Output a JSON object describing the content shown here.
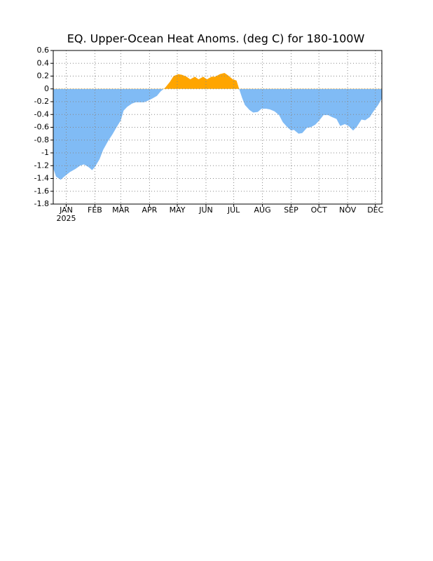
{
  "chart_data": {
    "type": "area",
    "title": "EQ. Upper-Ocean Heat Anoms. (deg C) for 180-100W",
    "year_label": "2025",
    "x": [
      0,
      3,
      8,
      12,
      18,
      24,
      29,
      33,
      38,
      42,
      45,
      50,
      54,
      59,
      64,
      68,
      73,
      76,
      80,
      85,
      89,
      94,
      98,
      103,
      107,
      112,
      116,
      121,
      126,
      130,
      135,
      139,
      144,
      148,
      153,
      157,
      162,
      166,
      171,
      175,
      180,
      185,
      189,
      194,
      198,
      201,
      204,
      207,
      212,
      216,
      221,
      225,
      230,
      234,
      239,
      244,
      248,
      253,
      257,
      260,
      265,
      269,
      274,
      278,
      283,
      287,
      292,
      297,
      301,
      306,
      310,
      315,
      319,
      324,
      328,
      333,
      337,
      342,
      346,
      351,
      355
    ],
    "values": [
      -1.24,
      -1.37,
      -1.42,
      -1.37,
      -1.3,
      -1.25,
      -1.2,
      -1.18,
      -1.22,
      -1.27,
      -1.22,
      -1.1,
      -0.95,
      -0.82,
      -0.71,
      -0.61,
      -0.49,
      -0.34,
      -0.28,
      -0.23,
      -0.21,
      -0.21,
      -0.21,
      -0.18,
      -0.15,
      -0.11,
      -0.04,
      0.02,
      0.11,
      0.2,
      0.23,
      0.22,
      0.19,
      0.15,
      0.19,
      0.15,
      0.19,
      0.15,
      0.19,
      0.19,
      0.23,
      0.25,
      0.21,
      0.15,
      0.13,
      -0.01,
      -0.14,
      -0.25,
      -0.33,
      -0.37,
      -0.36,
      -0.31,
      -0.31,
      -0.32,
      -0.35,
      -0.41,
      -0.52,
      -0.6,
      -0.65,
      -0.64,
      -0.7,
      -0.69,
      -0.61,
      -0.6,
      -0.56,
      -0.5,
      -0.41,
      -0.41,
      -0.44,
      -0.47,
      -0.58,
      -0.55,
      -0.58,
      -0.65,
      -0.59,
      -0.48,
      -0.49,
      -0.44,
      -0.35,
      -0.25,
      -0.15
    ],
    "positive_color": "#ffa500",
    "negative_color": "#80bbf5",
    "xlim": [
      0,
      355
    ],
    "xticks": [
      {
        "value": 14,
        "label": "JAN"
      },
      {
        "value": 45,
        "label": "FEB"
      },
      {
        "value": 73,
        "label": "MAR"
      },
      {
        "value": 104,
        "label": "APR"
      },
      {
        "value": 134,
        "label": "MAY"
      },
      {
        "value": 165,
        "label": "JUN"
      },
      {
        "value": 195,
        "label": "JUL"
      },
      {
        "value": 226,
        "label": "AUG"
      },
      {
        "value": 257,
        "label": "SEP"
      },
      {
        "value": 287,
        "label": "OCT"
      },
      {
        "value": 318,
        "label": "NOV"
      },
      {
        "value": 348,
        "label": "DEC"
      }
    ],
    "ylim": [
      -1.8,
      0.6
    ],
    "yticks": [
      0.6,
      0.4,
      0.2,
      0,
      -0.2,
      -0.4,
      -0.6,
      -0.8,
      -1,
      -1.2,
      -1.4,
      -1.6,
      -1.8
    ],
    "grid": true
  }
}
